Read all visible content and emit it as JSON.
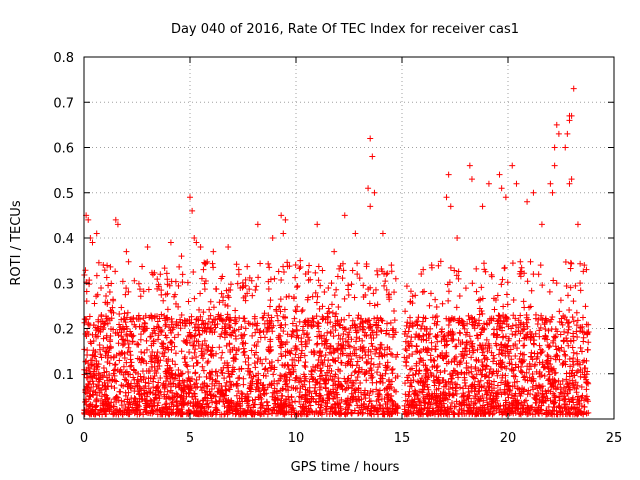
{
  "chart_data": {
    "type": "scatter",
    "title": "Day 040 of 2016, Rate Of TEC Index for receiver cas1",
    "xlabel": "GPS time / hours",
    "ylabel": "ROTI / TECUs",
    "xlim": [
      0,
      25
    ],
    "ylim": [
      0,
      0.8
    ],
    "x_ticks": [
      0,
      5,
      10,
      15,
      20,
      25
    ],
    "y_ticks": [
      0,
      0.1,
      0.2,
      0.3,
      0.4,
      0.5,
      0.6,
      0.7,
      0.8
    ],
    "x_tick_labels": [
      "0",
      "5",
      "10",
      "15",
      "20",
      "25"
    ],
    "y_tick_labels": [
      "0",
      "0.1",
      "0.2",
      "0.3",
      "0.4",
      "0.5",
      "0.6",
      "0.7",
      "0.8"
    ],
    "grid": true,
    "marker": "+",
    "color": "#ff0000",
    "data_gap_hours": [
      14.8,
      15.1
    ],
    "data_range_hours": [
      0,
      23.8
    ],
    "series": [
      {
        "name": "cas1",
        "points": [
          [
            0.1,
            0.45
          ],
          [
            0.2,
            0.44
          ],
          [
            0.3,
            0.4
          ],
          [
            0.4,
            0.39
          ],
          [
            0.6,
            0.41
          ],
          [
            1.5,
            0.44
          ],
          [
            1.6,
            0.43
          ],
          [
            2.0,
            0.37
          ],
          [
            3.0,
            0.38
          ],
          [
            3.6,
            0.32
          ],
          [
            4.1,
            0.39
          ],
          [
            4.6,
            0.36
          ],
          [
            5.0,
            0.49
          ],
          [
            5.1,
            0.46
          ],
          [
            5.2,
            0.4
          ],
          [
            5.3,
            0.39
          ],
          [
            5.5,
            0.38
          ],
          [
            6.1,
            0.37
          ],
          [
            6.8,
            0.38
          ],
          [
            7.3,
            0.33
          ],
          [
            8.2,
            0.43
          ],
          [
            8.9,
            0.4
          ],
          [
            9.3,
            0.45
          ],
          [
            9.5,
            0.44
          ],
          [
            9.4,
            0.41
          ],
          [
            10.2,
            0.35
          ],
          [
            11.0,
            0.43
          ],
          [
            11.8,
            0.37
          ],
          [
            12.3,
            0.45
          ],
          [
            12.8,
            0.41
          ],
          [
            13.4,
            0.51
          ],
          [
            13.5,
            0.62
          ],
          [
            13.6,
            0.58
          ],
          [
            13.7,
            0.5
          ],
          [
            13.5,
            0.47
          ],
          [
            14.1,
            0.41
          ],
          [
            14.5,
            0.34
          ],
          [
            15.4,
            0.26
          ],
          [
            16.0,
            0.33
          ],
          [
            16.4,
            0.34
          ],
          [
            17.1,
            0.49
          ],
          [
            17.2,
            0.54
          ],
          [
            17.3,
            0.47
          ],
          [
            17.6,
            0.4
          ],
          [
            18.2,
            0.56
          ],
          [
            18.3,
            0.53
          ],
          [
            18.8,
            0.47
          ],
          [
            19.1,
            0.52
          ],
          [
            19.6,
            0.54
          ],
          [
            19.7,
            0.51
          ],
          [
            19.9,
            0.49
          ],
          [
            20.2,
            0.56
          ],
          [
            20.4,
            0.52
          ],
          [
            20.9,
            0.48
          ],
          [
            21.2,
            0.5
          ],
          [
            21.6,
            0.43
          ],
          [
            22.0,
            0.52
          ],
          [
            22.1,
            0.5
          ],
          [
            22.2,
            0.6
          ],
          [
            22.3,
            0.65
          ],
          [
            22.4,
            0.63
          ],
          [
            22.2,
            0.56
          ],
          [
            22.7,
            0.6
          ],
          [
            22.8,
            0.63
          ],
          [
            22.9,
            0.67
          ],
          [
            22.9,
            0.66
          ],
          [
            23.0,
            0.67
          ],
          [
            23.1,
            0.73
          ],
          [
            23.0,
            0.53
          ],
          [
            22.9,
            0.52
          ],
          [
            23.3,
            0.43
          ],
          [
            23.6,
            0.34
          ],
          [
            23.7,
            0.33
          ]
        ]
      }
    ]
  }
}
